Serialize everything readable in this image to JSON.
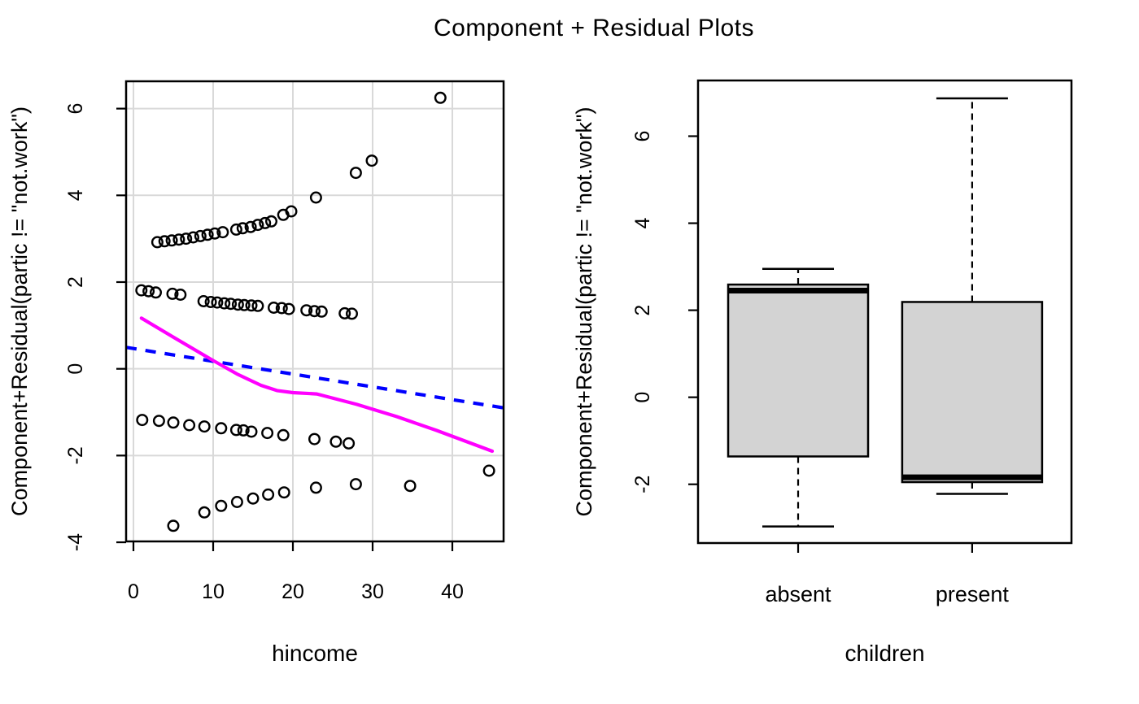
{
  "title": "Component + Residual Plots",
  "style": {
    "background": "#FFFFFF",
    "grid_color": "#D9D9D9",
    "axis_color": "#000000",
    "point_color": "#000000",
    "loess_color": "#FF00FF",
    "component_color": "#0000FF",
    "box_fill": "#D3D3D3"
  },
  "chart_data": [
    {
      "id": "crplot-hincome",
      "type": "scatter",
      "xlabel": "hincome",
      "ylabel": "Component+Residual(partic != \"not.work\")",
      "xlim": [
        -0.92,
        46.43
      ],
      "ylim": [
        -3.98,
        6.63
      ],
      "xticks": [
        0,
        10,
        20,
        30,
        40
      ],
      "yticks": [
        -4,
        -2,
        0,
        2,
        4,
        6
      ],
      "grid": true,
      "points": [
        [
          3.0,
          2.92
        ],
        [
          3.9,
          2.94
        ],
        [
          4.8,
          2.96
        ],
        [
          5.7,
          2.98
        ],
        [
          6.6,
          3.0
        ],
        [
          7.5,
          3.03
        ],
        [
          8.4,
          3.06
        ],
        [
          9.3,
          3.09
        ],
        [
          10.2,
          3.12
        ],
        [
          11.2,
          3.15
        ],
        [
          12.9,
          3.21
        ],
        [
          13.7,
          3.24
        ],
        [
          14.7,
          3.27
        ],
        [
          15.6,
          3.32
        ],
        [
          16.5,
          3.36
        ],
        [
          17.3,
          3.4
        ],
        [
          18.8,
          3.55
        ],
        [
          19.8,
          3.63
        ],
        [
          22.9,
          3.95
        ],
        [
          27.9,
          4.52
        ],
        [
          29.9,
          4.8
        ],
        [
          38.5,
          6.25
        ],
        [
          1.0,
          1.81
        ],
        [
          1.9,
          1.79
        ],
        [
          2.8,
          1.76
        ],
        [
          4.9,
          1.73
        ],
        [
          5.9,
          1.71
        ],
        [
          8.8,
          1.56
        ],
        [
          9.7,
          1.54
        ],
        [
          10.5,
          1.53
        ],
        [
          11.4,
          1.51
        ],
        [
          12.2,
          1.5
        ],
        [
          13.1,
          1.48
        ],
        [
          13.9,
          1.47
        ],
        [
          14.8,
          1.46
        ],
        [
          15.6,
          1.45
        ],
        [
          17.6,
          1.41
        ],
        [
          18.6,
          1.4
        ],
        [
          19.5,
          1.38
        ],
        [
          21.7,
          1.35
        ],
        [
          22.7,
          1.33
        ],
        [
          23.6,
          1.32
        ],
        [
          26.5,
          1.28
        ],
        [
          27.4,
          1.27
        ],
        [
          1.1,
          -1.18
        ],
        [
          3.2,
          -1.2
        ],
        [
          5.0,
          -1.24
        ],
        [
          7.0,
          -1.3
        ],
        [
          8.9,
          -1.33
        ],
        [
          11.0,
          -1.37
        ],
        [
          12.9,
          -1.41
        ],
        [
          13.8,
          -1.42
        ],
        [
          14.8,
          -1.45
        ],
        [
          16.8,
          -1.48
        ],
        [
          18.8,
          -1.53
        ],
        [
          22.7,
          -1.62
        ],
        [
          25.4,
          -1.68
        ],
        [
          27.0,
          -1.72
        ],
        [
          5.0,
          -3.62
        ],
        [
          8.9,
          -3.31
        ],
        [
          11.0,
          -3.16
        ],
        [
          13.0,
          -3.07
        ],
        [
          15.0,
          -2.99
        ],
        [
          16.9,
          -2.9
        ],
        [
          18.9,
          -2.85
        ],
        [
          22.9,
          -2.74
        ],
        [
          27.9,
          -2.66
        ],
        [
          34.7,
          -2.7
        ],
        [
          44.6,
          -2.35
        ]
      ],
      "loess_line": {
        "name": "loess-smooth",
        "points": [
          [
            1.0,
            1.17
          ],
          [
            5,
            0.73
          ],
          [
            10,
            0.19
          ],
          [
            13,
            -0.12
          ],
          [
            16,
            -0.38
          ],
          [
            18,
            -0.5
          ],
          [
            20,
            -0.55
          ],
          [
            23,
            -0.58
          ],
          [
            28,
            -0.82
          ],
          [
            33,
            -1.1
          ],
          [
            38,
            -1.42
          ],
          [
            45,
            -1.9
          ]
        ]
      },
      "component_line": {
        "name": "component-fit",
        "points": [
          [
            -0.92,
            0.495
          ],
          [
            46.43,
            -0.9
          ]
        ]
      }
    },
    {
      "id": "crplot-children",
      "type": "boxplot",
      "xlabel": "children",
      "ylabel": "Component+Residual(partic != \"not.work\")",
      "ylim": [
        -3.35,
        7.28
      ],
      "yticks": [
        -2,
        0,
        2,
        4,
        6
      ],
      "grid": false,
      "categories": [
        "absent",
        "present"
      ],
      "boxes": [
        {
          "category": "absent",
          "whisker_low": -2.97,
          "q1": -1.36,
          "median": 2.45,
          "q3": 2.59,
          "whisker_high": 2.95
        },
        {
          "category": "present",
          "whisker_low": -2.22,
          "q1": -1.95,
          "median": -1.84,
          "q3": 2.19,
          "whisker_high": 6.87
        }
      ]
    }
  ]
}
